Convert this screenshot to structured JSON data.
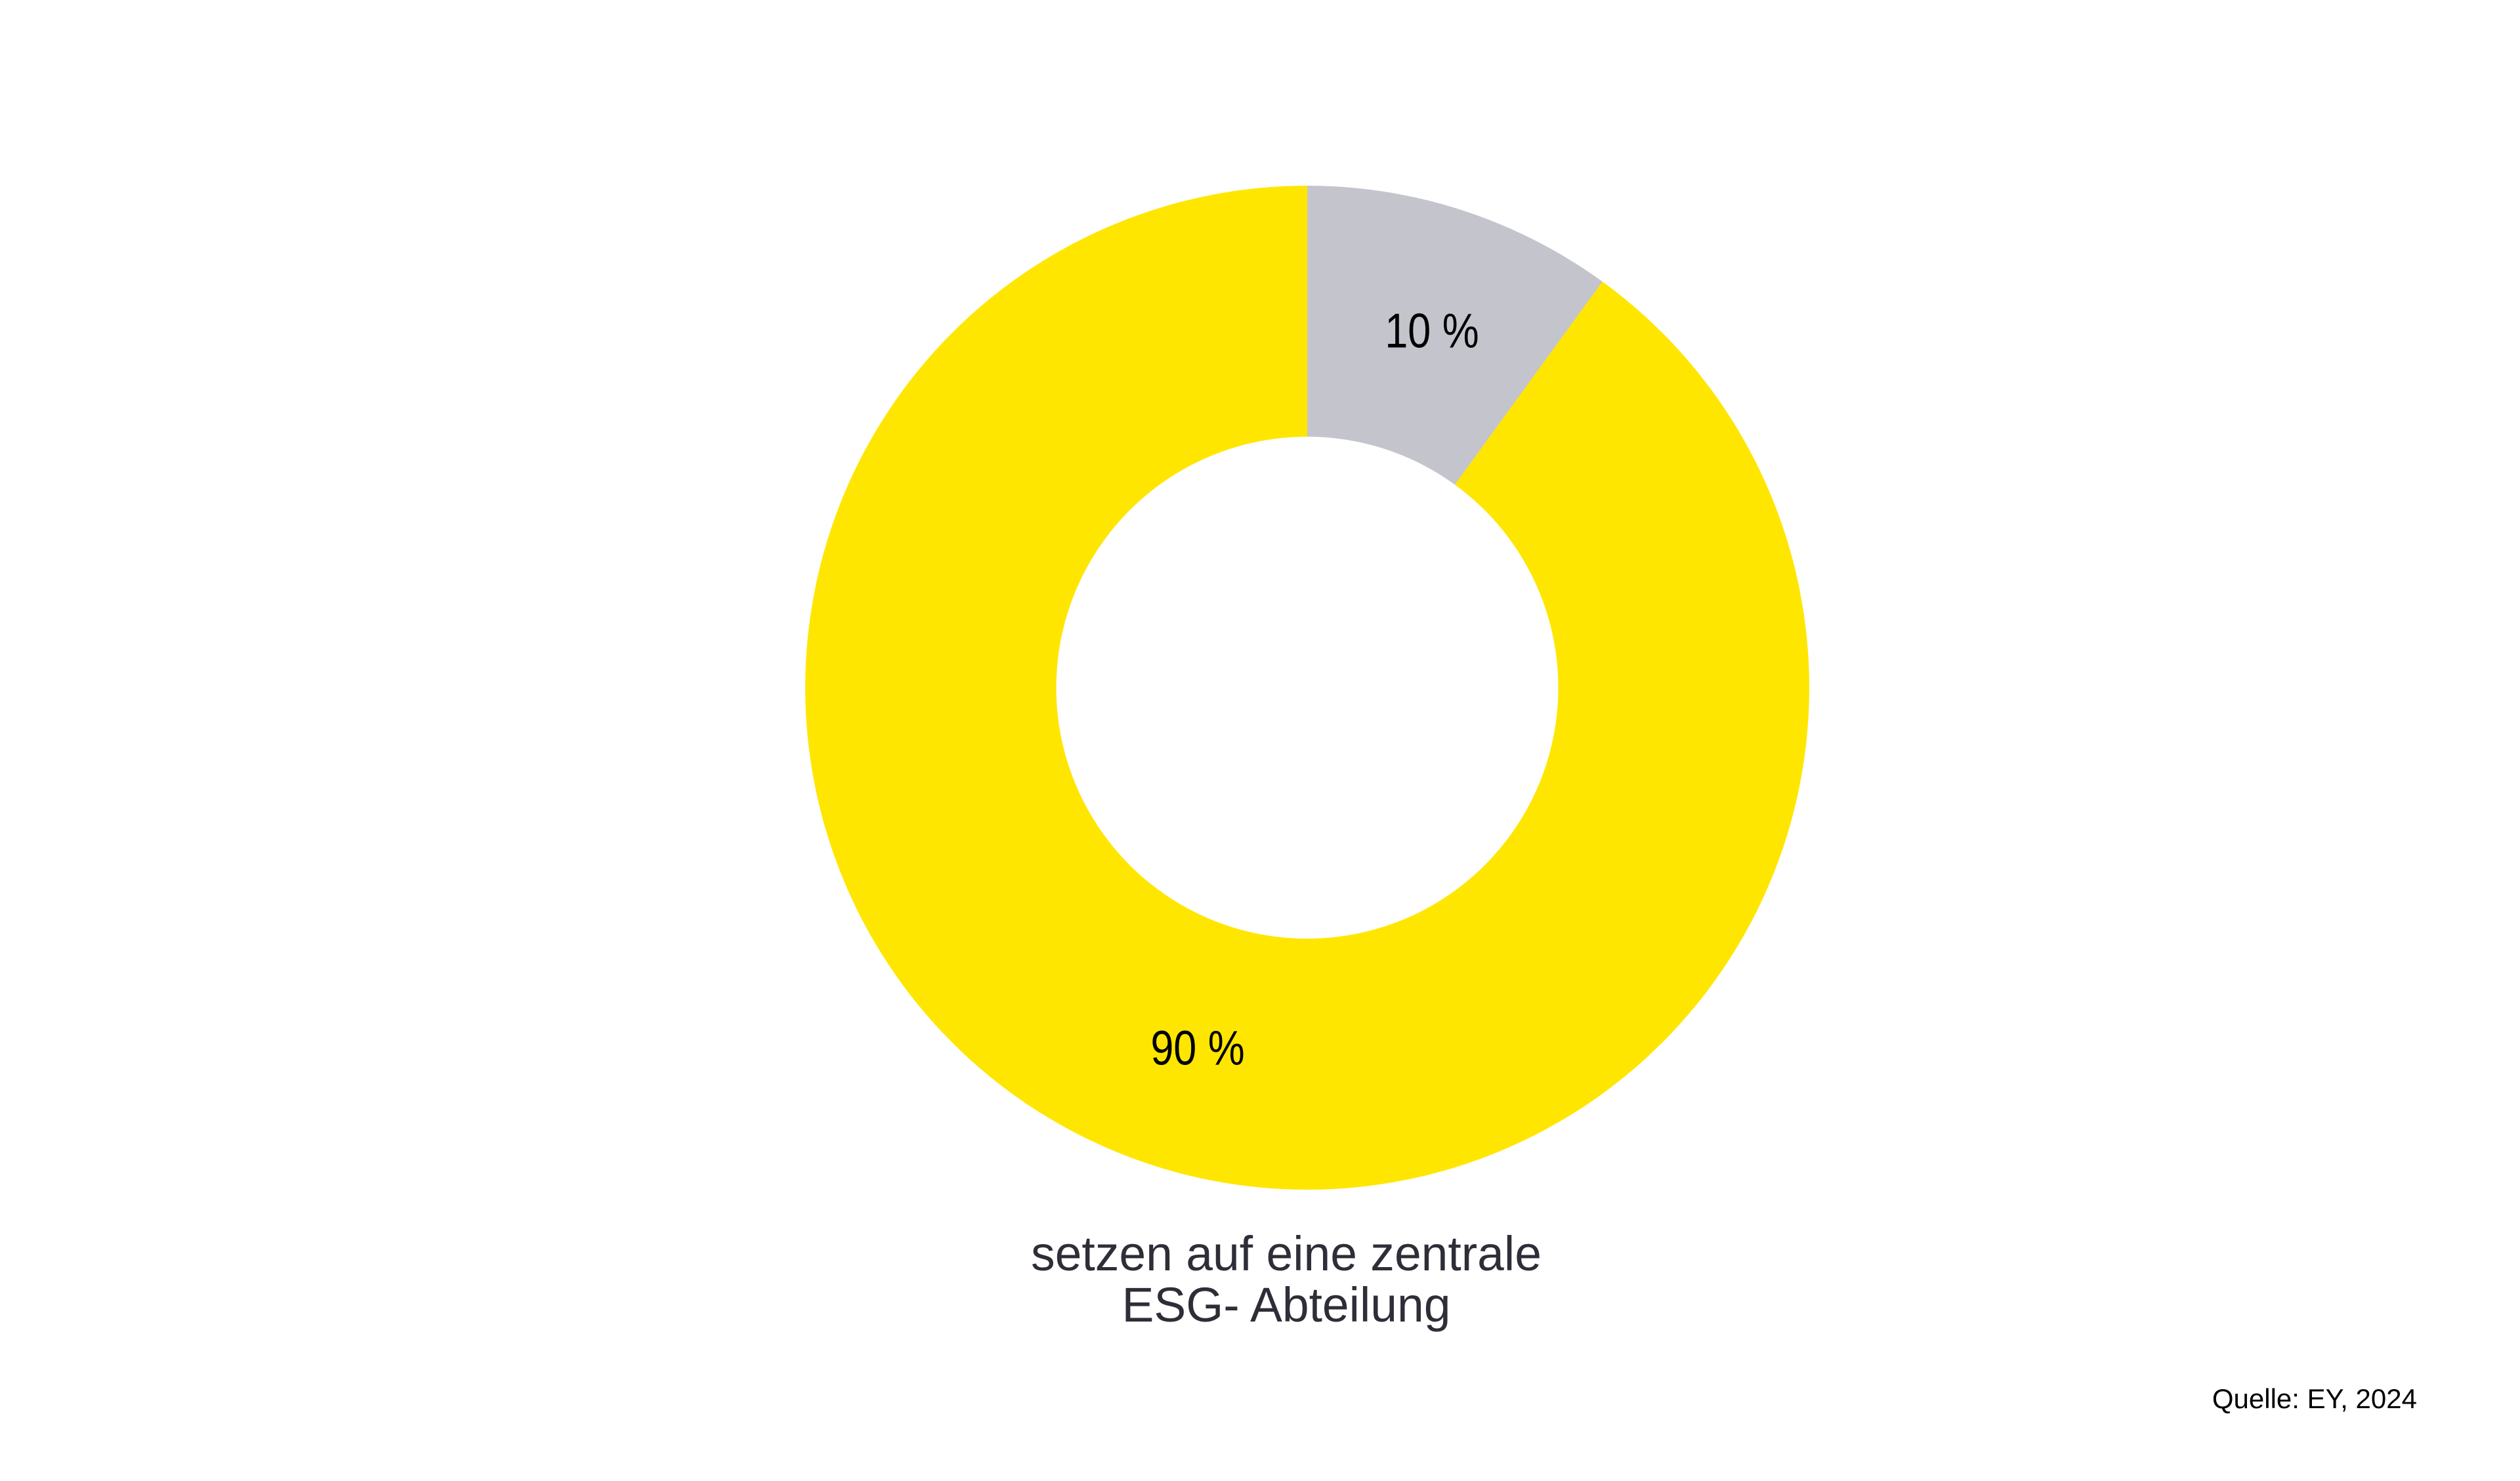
{
  "page": {
    "background": "#ffffff"
  },
  "chart_data": {
    "type": "pie",
    "subtype": "donut",
    "values": [
      10,
      90
    ],
    "slice_labels": [
      "10 %",
      "90 %"
    ],
    "colors": [
      "#c4c4cd",
      "#ffe600"
    ],
    "start_angle_deg": 0,
    "direction": "clockwise",
    "inner_radius_ratio": 0.5,
    "legend": "none",
    "title": "",
    "caption_line1": "setzen auf eine zentrale",
    "caption_line2": "ESG- Abteilung",
    "source": "Quelle: EY, 2024",
    "label_color": "#000000",
    "caption_color": "#2e2e38",
    "source_color": "#000000"
  }
}
